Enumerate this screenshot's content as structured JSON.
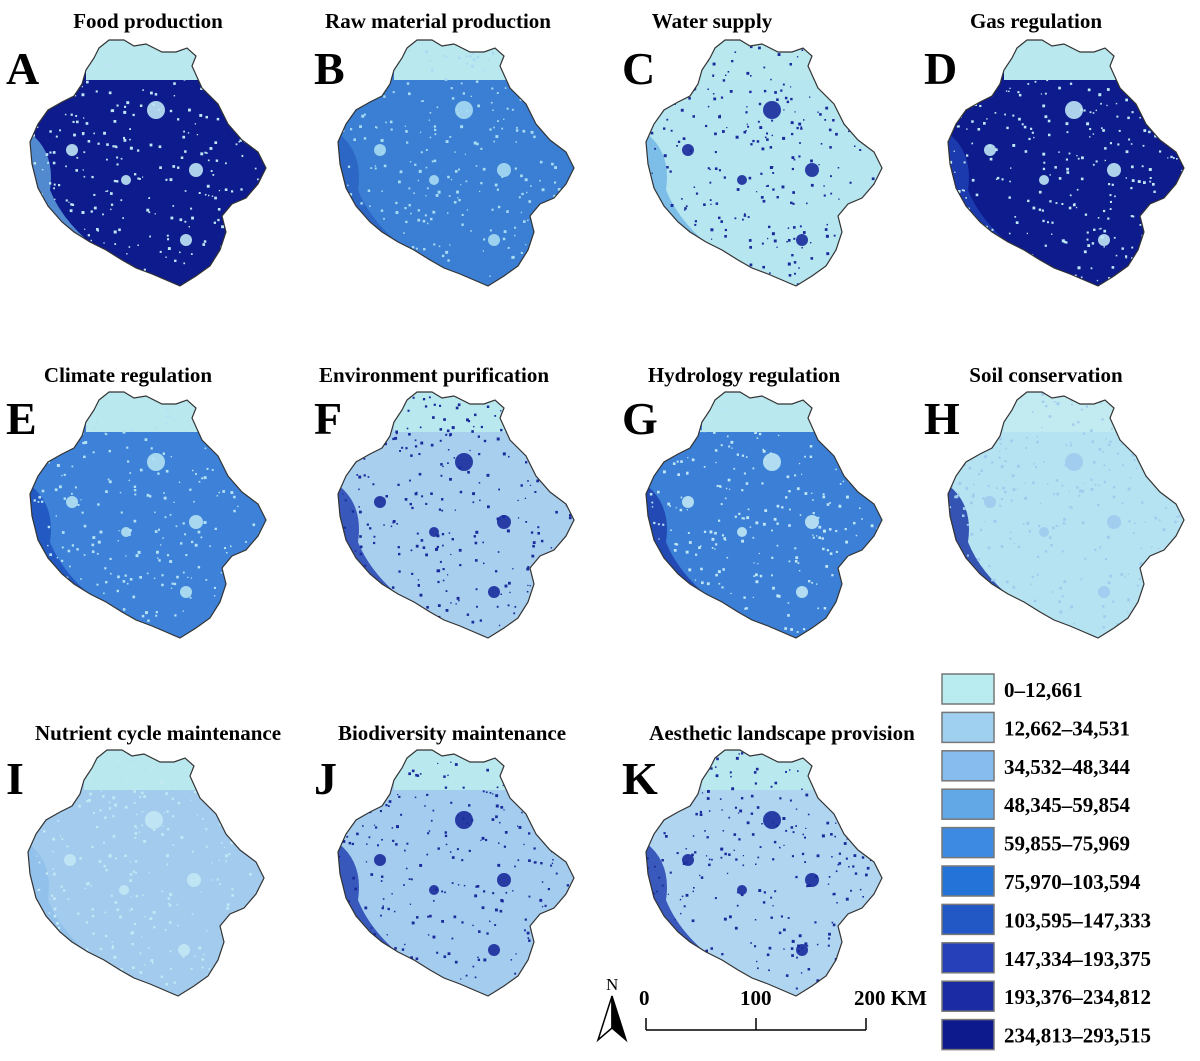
{
  "panels": [
    {
      "letter": "A",
      "title": "Food production",
      "base": "#0d1b8c",
      "speck": "#bfe6f5",
      "west": "#5f9edc",
      "north": "#b9e8ef"
    },
    {
      "letter": "B",
      "title": "Raw material production",
      "base": "#3a7fd3",
      "speck": "#a7dbf2",
      "west": "#2a63c3",
      "north": "#b9e8ef"
    },
    {
      "letter": "C",
      "title": "Water supply",
      "base": "#b6e6ef",
      "speck": "#1a2b9c",
      "west": "#73b6e6",
      "north": "#b9e8ef"
    },
    {
      "letter": "D",
      "title": "Gas regulation",
      "base": "#0d1b8c",
      "speck": "#bfe6f5",
      "west": "#1e40b4",
      "north": "#b9e8ef"
    },
    {
      "letter": "E",
      "title": "Climate regulation",
      "base": "#3d82d8",
      "speck": "#b3e1f3",
      "west": "#1f52be",
      "north": "#b9e8ef"
    },
    {
      "letter": "F",
      "title": "Environment purification",
      "base": "#a9cfee",
      "speck": "#1a2b9c",
      "west": "#2643b3",
      "north": "#b9e8ef"
    },
    {
      "letter": "G",
      "title": "Hydrology regulation",
      "base": "#3b80d6",
      "speck": "#bfe6f5",
      "west": "#1f3fae",
      "north": "#b9e8ef"
    },
    {
      "letter": "H",
      "title": "Soil conservation",
      "base": "#b6e3f1",
      "speck": "#9fcbee",
      "west": "#1d3aa8",
      "north": "#c2ebf1"
    },
    {
      "letter": "I",
      "title": "Nutrient cycle maintenance",
      "base": "#a2cbee",
      "speck": "#c2e8f4",
      "west": "#8fbfea",
      "north": "#b9e8ef"
    },
    {
      "letter": "J",
      "title": "Biodiversity maintenance",
      "base": "#a4ccee",
      "speck": "#1a2b9c",
      "west": "#2643b3",
      "north": "#b9e8ef"
    },
    {
      "letter": "K",
      "title": "Aesthetic landscape provision",
      "base": "#afd5f0",
      "speck": "#1a2b9c",
      "west": "#2643b3",
      "north": "#b9e8ef"
    }
  ],
  "legend": [
    {
      "label": "0–12,661",
      "color": "#b9ecf0"
    },
    {
      "label": "12,662–34,531",
      "color": "#9fd0f0"
    },
    {
      "label": "34,532–48,344",
      "color": "#86bdee"
    },
    {
      "label": "48,345–59,854",
      "color": "#63a8e6"
    },
    {
      "label": "59,855–75,969",
      "color": "#3d8ae2"
    },
    {
      "label": "75,970–103,594",
      "color": "#2373d8"
    },
    {
      "label": "103,595–147,333",
      "color": "#2258c6"
    },
    {
      "label": "147,334–193,375",
      "color": "#2540b8"
    },
    {
      "label": "193,376–234,812",
      "color": "#1a2ba3"
    },
    {
      "label": "234,813–293,515",
      "color": "#0c1a8e"
    }
  ],
  "north_arrow": {
    "label": "N"
  },
  "scale_bar": {
    "ticks": [
      "0",
      "100",
      "200 KM"
    ]
  }
}
